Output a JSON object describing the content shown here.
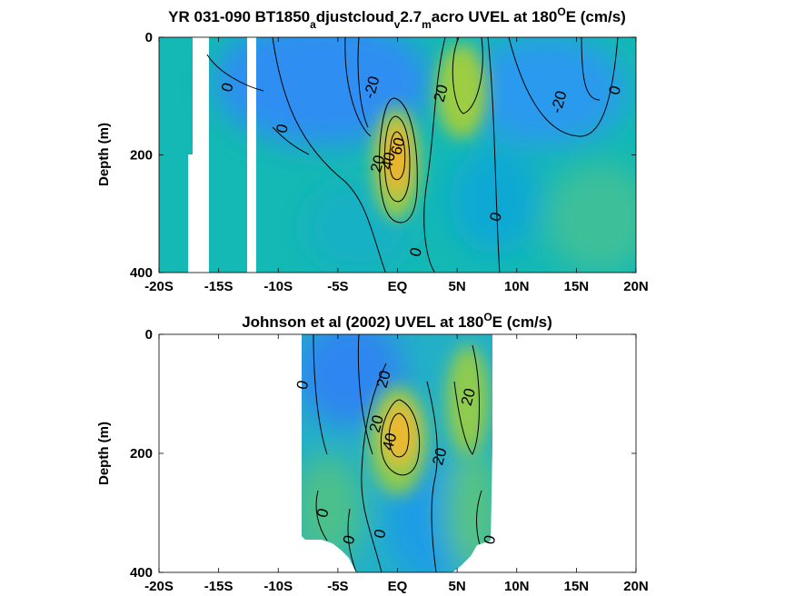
{
  "chart_data": [
    {
      "type": "heatmap",
      "title": {
        "main": "YR 031-090 BT1850",
        "sub1": "a",
        "mid1": "djustcloud",
        "sub2": "v",
        "mid2": "2.7",
        "sub3": "m",
        "end_pre": "acro UVEL at 180",
        "sup": "O",
        "end_post": "E (cm/s)"
      },
      "ylabel": "Depth (m)",
      "xlim": [
        -20,
        20
      ],
      "ylim": [
        0,
        400
      ],
      "y_reversed": true,
      "yticks": [
        0,
        200,
        400
      ],
      "ytick_labels": [
        "0",
        "200",
        "400"
      ],
      "xticks": [
        -20,
        -15,
        -10,
        -5,
        0,
        5,
        10,
        15,
        20
      ],
      "xtick_labels": [
        "-20S",
        "-15S",
        "-10S",
        "-5S",
        "EQ",
        "5N",
        "10N",
        "15N",
        "20N"
      ],
      "colormap": "parula",
      "missing_bands_lat": [
        [
          -17.5,
          -16.0
        ],
        [
          -12.7,
          -12.0
        ]
      ],
      "features": [
        {
          "kind": "jet_core",
          "lat": 0.3,
          "depth": 180,
          "max_cm_s": 70
        },
        {
          "kind": "eastward_max",
          "lat": 5.5,
          "depth": 90,
          "max_cm_s": 30
        },
        {
          "kind": "westward_max",
          "lat": -2.5,
          "depth": 40,
          "min_cm_s": -40
        },
        {
          "kind": "westward_max",
          "lat": 12.5,
          "depth": 80,
          "min_cm_s": -25
        }
      ],
      "contour_labels": [
        {
          "text": "0",
          "lat": -14.3,
          "depth": 85
        },
        {
          "text": "0",
          "lat": -9.7,
          "depth": 155
        },
        {
          "text": "-20",
          "lat": -2.2,
          "depth": 85
        },
        {
          "text": "20",
          "lat": -1.7,
          "depth": 215
        },
        {
          "text": "60",
          "lat": 0.0,
          "depth": 185
        },
        {
          "text": "40",
          "lat": -0.8,
          "depth": 210
        },
        {
          "text": "20",
          "lat": 3.6,
          "depth": 95
        },
        {
          "text": "0",
          "lat": 1.5,
          "depth": 365
        },
        {
          "text": "0",
          "lat": 8.2,
          "depth": 305
        },
        {
          "text": "-20",
          "lat": 13.5,
          "depth": 110
        },
        {
          "text": "0",
          "lat": 18.2,
          "depth": 90
        }
      ]
    },
    {
      "type": "heatmap",
      "title": {
        "main": "Johnson et al (2002) UVEL at 180",
        "sup": "O",
        "end_post": "E (cm/s)"
      },
      "ylabel": "Depth (m)",
      "xlim": [
        -20,
        20
      ],
      "ylim": [
        0,
        400
      ],
      "y_reversed": true,
      "yticks": [
        0,
        200,
        400
      ],
      "ytick_labels": [
        "0",
        "200",
        "400"
      ],
      "xticks": [
        -20,
        -15,
        -10,
        -5,
        0,
        5,
        10,
        15,
        20
      ],
      "xtick_labels": [
        "-20S",
        "-15S",
        "-10S",
        "-5S",
        "EQ",
        "5N",
        "10N",
        "15N",
        "20N"
      ],
      "colormap": "parula",
      "data_extent_lat": [
        -8.0,
        8.0
      ],
      "features": [
        {
          "kind": "jet_core",
          "lat": 0.5,
          "depth": 170,
          "max_cm_s": 70
        },
        {
          "kind": "eastward_max",
          "lat": 6.8,
          "depth": 90,
          "max_cm_s": 30
        },
        {
          "kind": "westward_max",
          "lat": -4.5,
          "depth": 60,
          "min_cm_s": -40
        }
      ],
      "contour_labels": [
        {
          "text": "0",
          "lat": -8.0,
          "depth": 85
        },
        {
          "text": "20",
          "lat": -1.2,
          "depth": 75
        },
        {
          "text": "20",
          "lat": -1.8,
          "depth": 150
        },
        {
          "text": "40",
          "lat": -0.7,
          "depth": 180
        },
        {
          "text": "20",
          "lat": 3.5,
          "depth": 205
        },
        {
          "text": "20",
          "lat": 5.9,
          "depth": 105
        },
        {
          "text": "0",
          "lat": -6.3,
          "depth": 300
        },
        {
          "text": "0",
          "lat": -4.1,
          "depth": 345
        },
        {
          "text": "0",
          "lat": -1.5,
          "depth": 335
        },
        {
          "text": "0",
          "lat": 7.7,
          "depth": 345
        }
      ]
    }
  ]
}
